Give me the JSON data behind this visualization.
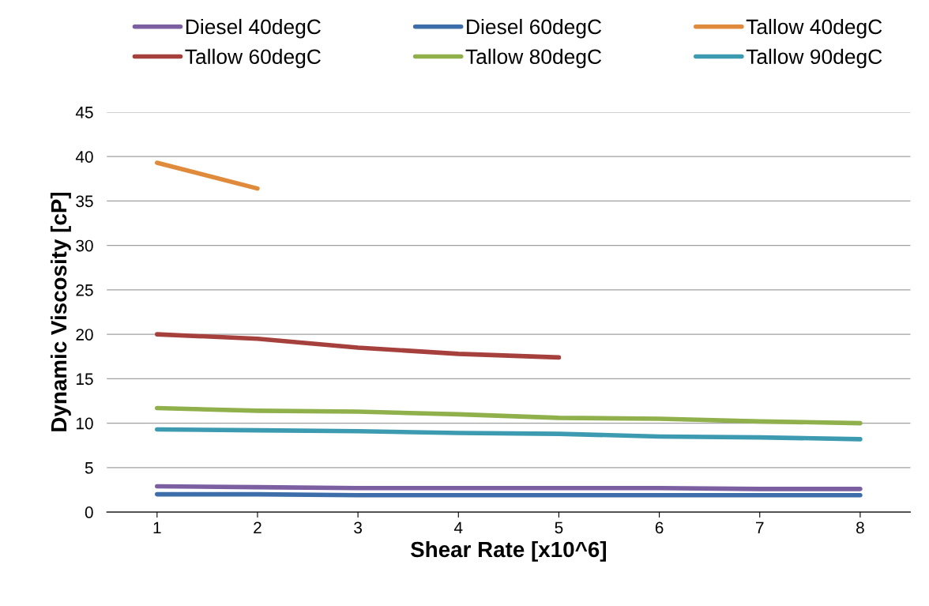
{
  "chart_data": {
    "type": "line",
    "xlabel": "Shear Rate [x10^6]",
    "ylabel": "Dynamic Viscosity [cP]",
    "categories": [
      "1",
      "2",
      "3",
      "4",
      "5",
      "6",
      "7",
      "8"
    ],
    "series": [
      {
        "name": "Diesel 40degC",
        "color": "#7b5fa0",
        "values": [
          2.9,
          2.8,
          2.7,
          2.7,
          2.7,
          2.7,
          2.6,
          2.6
        ]
      },
      {
        "name": "Diesel 60degC",
        "color": "#3e6eaa",
        "values": [
          2.0,
          2.0,
          1.9,
          1.9,
          1.9,
          1.9,
          1.9,
          1.9
        ]
      },
      {
        "name": "Tallow 40degC",
        "color": "#e08a3c",
        "values": [
          39.3,
          36.4,
          null,
          null,
          null,
          null,
          null,
          null
        ]
      },
      {
        "name": "Tallow 60degC",
        "color": "#a5403c",
        "values": [
          20.0,
          19.5,
          18.5,
          17.8,
          17.4,
          null,
          null,
          null
        ]
      },
      {
        "name": "Tallow 80degC",
        "color": "#8fb04a",
        "values": [
          11.7,
          11.4,
          11.3,
          11.0,
          10.6,
          10.5,
          10.2,
          10.0
        ]
      },
      {
        "name": "Tallow 90degC",
        "color": "#3c9bb0",
        "values": [
          9.3,
          9.2,
          9.1,
          8.9,
          8.8,
          8.5,
          8.4,
          8.2
        ]
      }
    ],
    "ylim": [
      0,
      45
    ],
    "yticks": [
      0,
      5,
      10,
      15,
      20,
      25,
      30,
      35,
      40,
      45
    ],
    "grid": "y",
    "legend": "top",
    "marker": "none",
    "line_style": "solid"
  }
}
